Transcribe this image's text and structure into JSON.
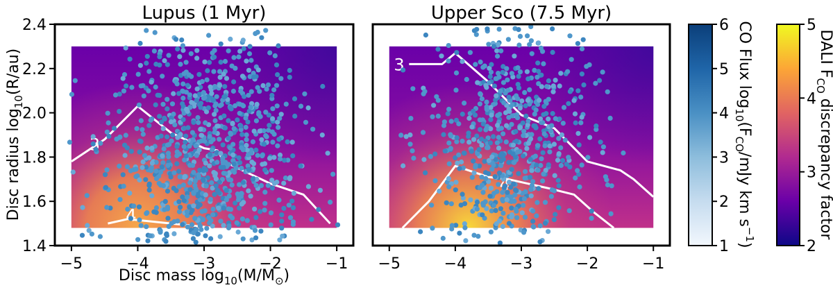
{
  "chart_data": [
    {
      "type": "scatter",
      "title": "Lupus (1 Myr)",
      "xlabel_main": "Disc mass log",
      "xlabel_sub": "10",
      "xlabel_tail": "(M/M",
      "xlabel_sun": "⊙",
      "xlabel_close": ")",
      "ylabel_main": "Disc radius log",
      "ylabel_sub": "10",
      "ylabel_tail": "(R/au)",
      "xlim": [
        -5.25,
        -0.75
      ],
      "ylim": [
        1.4,
        2.4
      ],
      "xticks": [
        -5,
        -4,
        -3,
        -2,
        -1
      ],
      "xtick_labels": [
        "−5",
        "−4",
        "−3",
        "−2",
        "−1"
      ],
      "yticks": [
        1.4,
        1.6,
        1.8,
        2.0,
        2.2,
        2.4
      ],
      "ytick_labels": [
        "1.4",
        "1.6",
        "1.8",
        "2.0",
        "2.2",
        "2.4"
      ],
      "background_model_extent": {
        "x": [
          -5.0,
          -1.0
        ],
        "y": [
          1.48,
          2.3
        ]
      },
      "background_peak": {
        "x": -4.0,
        "y": 1.48,
        "value": 4.7
      },
      "contours": [
        {
          "level": "3",
          "points": [
            [
              -5.0,
              1.78
            ],
            [
              -4.5,
              1.88
            ],
            [
              -4.0,
              2.03
            ],
            [
              -3.5,
              1.91
            ],
            [
              -3.0,
              1.84
            ],
            [
              -2.8,
              1.83
            ],
            [
              -2.7,
              1.78
            ],
            [
              -2.0,
              1.68
            ],
            [
              -1.5,
              1.63
            ],
            [
              -1.1,
              1.5
            ]
          ],
          "label_at": [
            -4.65,
            1.86
          ]
        },
        {
          "level": "4",
          "points": [
            [
              -4.45,
              1.5
            ],
            [
              -4.15,
              1.52
            ],
            [
              -3.5,
              1.5
            ],
            [
              -2.85,
              1.48
            ]
          ],
          "label_at": [
            -4.1,
            1.54
          ]
        }
      ],
      "scatter": {
        "n": 1000,
        "x_mean": -3.0,
        "x_sd": 0.7,
        "y_mean": 1.8,
        "y_sd": 0.28,
        "color": "#4a90c4"
      }
    },
    {
      "type": "scatter",
      "title": "Upper Sco (7.5 Myr)",
      "xlim": [
        -5.25,
        -0.75
      ],
      "ylim": [
        1.4,
        2.4
      ],
      "xticks": [
        -5,
        -4,
        -3,
        -2,
        -1
      ],
      "xtick_labels": [
        "−5",
        "−4",
        "−3",
        "−2",
        "−1"
      ],
      "background_model_extent": {
        "x": [
          -5.0,
          -1.0
        ],
        "y": [
          1.48,
          2.3
        ]
      },
      "background_peak": {
        "x": -3.8,
        "y": 1.48,
        "value": 5.0
      },
      "contours": [
        {
          "level": "3",
          "points": [
            [
              -4.7,
              2.22
            ],
            [
              -4.2,
              2.22
            ],
            [
              -4.0,
              2.27
            ],
            [
              -3.5,
              2.14
            ],
            [
              -3.0,
              1.99
            ],
            [
              -2.5,
              1.93
            ],
            [
              -2.0,
              1.78
            ],
            [
              -1.5,
              1.74
            ],
            [
              -1.3,
              1.7
            ],
            [
              -1.0,
              1.62
            ]
          ],
          "label_at": [
            -4.85,
            2.22
          ]
        },
        {
          "level": "4",
          "points": [
            [
              -4.8,
              1.48
            ],
            [
              -4.4,
              1.6
            ],
            [
              -4.0,
              1.76
            ],
            [
              -3.5,
              1.71
            ],
            [
              -3.2,
              1.7
            ],
            [
              -2.6,
              1.66
            ],
            [
              -2.2,
              1.63
            ],
            [
              -1.9,
              1.55
            ],
            [
              -1.6,
              1.48
            ]
          ],
          "label_at": [
            -3.25,
            1.68
          ]
        }
      ],
      "scatter": {
        "n": 700,
        "x_mean": -3.2,
        "x_sd": 0.6,
        "y_mean": 1.88,
        "y_sd": 0.3,
        "color": "#4a90c4"
      }
    }
  ],
  "colorbar_co": {
    "label": "CO Flux log",
    "label_sub": "10",
    "label_tail_open": "(F",
    "label_tail_sub": "CO",
    "label_tail": "/mJy km s",
    "label_sup": "−1",
    "label_close": ")",
    "range": [
      1,
      6
    ],
    "ticks": [
      "1",
      "2",
      "3",
      "4",
      "5",
      "6"
    ],
    "colors": [
      "#f2f7fd",
      "#c6dcef",
      "#8dbddc",
      "#4a90c4",
      "#1f65a8",
      "#0b3f7a"
    ]
  },
  "colorbar_dali": {
    "label_pre": "DALI F",
    "label_sub": "CO",
    "label_post": " discrepancy factor",
    "range": [
      2,
      5
    ],
    "ticks": [
      "2",
      "3",
      "4",
      "5"
    ],
    "colors": [
      "#0d0887",
      "#6a00a8",
      "#b12a90",
      "#e16462",
      "#fca636",
      "#f0f921"
    ]
  }
}
